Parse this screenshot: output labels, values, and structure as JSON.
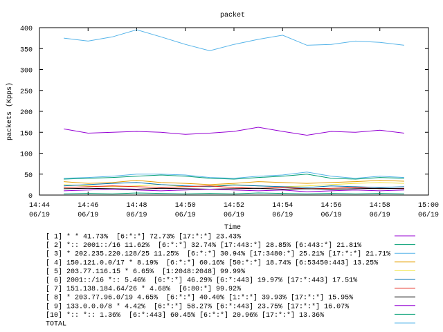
{
  "chart_data": {
    "type": "line",
    "title": "packet",
    "xlabel": "Time",
    "ylabel": "packets (Kpps)",
    "x": [
      "14:45",
      "14:46",
      "14:47",
      "14:48",
      "14:49",
      "14:50",
      "14:51",
      "14:52",
      "14:53",
      "14:54",
      "14:55",
      "14:56",
      "14:57",
      "14:58",
      "14:59"
    ],
    "xlim": [
      "14:44",
      "15:00"
    ],
    "xticks": [
      {
        "value": "14:44",
        "label": [
          "14:44",
          "06/19"
        ]
      },
      {
        "value": "14:46",
        "label": [
          "14:46",
          "06/19"
        ]
      },
      {
        "value": "14:48",
        "label": [
          "14:48",
          "06/19"
        ]
      },
      {
        "value": "14:50",
        "label": [
          "14:50",
          "06/19"
        ]
      },
      {
        "value": "14:52",
        "label": [
          "14:52",
          "06/19"
        ]
      },
      {
        "value": "14:54",
        "label": [
          "14:54",
          "06/19"
        ]
      },
      {
        "value": "14:56",
        "label": [
          "14:56",
          "06/19"
        ]
      },
      {
        "value": "14:58",
        "label": [
          "14:58",
          "06/19"
        ]
      },
      {
        "value": "15:00",
        "label": [
          "15:00",
          "06/19"
        ]
      }
    ],
    "ylim": [
      0,
      400
    ],
    "yticks": [
      0,
      50,
      100,
      150,
      200,
      250,
      300,
      350,
      400
    ],
    "series": [
      {
        "name": "[ 1] * * 41.73%  [6:*:*] 72.73% [17:*:*] 23.43%",
        "color": "#9400d3",
        "values": [
          158,
          148,
          150,
          152,
          150,
          145,
          148,
          152,
          162,
          152,
          143,
          152,
          150,
          155,
          148
        ]
      },
      {
        "name": "[ 2] *:: 2001::/16 11.62%  [6:*:*] 32.74% [17:443:*] 28.85% [6:443:*] 21.81%",
        "color": "#009e73",
        "values": [
          38,
          40,
          42,
          45,
          48,
          45,
          40,
          38,
          42,
          45,
          50,
          40,
          38,
          42,
          40
        ]
      },
      {
        "name": "[ 3] * 202.235.220.128/25 11.25%  [6:*:*] 30.94% [17:3480:*] 25.21% [17:*:*] 21.71%",
        "color": "#56b4e9",
        "values": [
          40,
          42,
          45,
          50,
          50,
          48,
          42,
          40,
          45,
          48,
          55,
          45,
          40,
          45,
          42
        ]
      },
      {
        "name": "[ 4] 150.121.0.0/17 * 8.19%  [6:*:*] 60.16% [50:*:*] 18.74% [6:53450:443] 13.25%",
        "color": "#e69f00",
        "values": [
          32,
          28,
          30,
          35,
          30,
          28,
          25,
          28,
          32,
          30,
          28,
          30,
          32,
          35,
          33
        ]
      },
      {
        "name": "[ 5] 203.77.116.15 * 6.65%  [1:2048:2048] 99.99%",
        "color": "#f0e442",
        "values": [
          25,
          22,
          20,
          22,
          25,
          20,
          22,
          25,
          22,
          20,
          22,
          25,
          28,
          30,
          28
        ]
      },
      {
        "name": "[ 6] 2001::/16 *:: 5.46%  [6:*:*] 46.29% [6:*:443] 19.97% [17:*:443] 17.51%",
        "color": "#0072b2",
        "values": [
          22,
          25,
          28,
          30,
          25,
          22,
          20,
          24,
          22,
          20,
          18,
          22,
          20,
          18,
          20
        ]
      },
      {
        "name": "[ 7] 151.138.184.64/26 * 4.68%  [6:80:*] 99.92%",
        "color": "#e51e10",
        "values": [
          18,
          20,
          22,
          20,
          18,
          20,
          22,
          18,
          16,
          18,
          15,
          16,
          18,
          15,
          16
        ]
      },
      {
        "name": "[ 8] * 203.77.96.0/19 4.65%  [6:*:*] 40.40% [1:*:*] 39.93% [17:*:*] 15.95%",
        "color": "#000000",
        "values": [
          15,
          16,
          15,
          14,
          16,
          15,
          14,
          15,
          16,
          14,
          15,
          14,
          15,
          16,
          15
        ]
      },
      {
        "name": "[ 9] 133.0.0.0/8 * 4.42%  [6:*:*] 58.27% [6:*:443] 23.75% [17:*:*] 16.07%",
        "color": "#9400d3",
        "values": [
          10,
          12,
          14,
          12,
          10,
          12,
          14,
          12,
          10,
          12,
          8,
          10,
          12,
          10,
          12
        ]
      },
      {
        "name": "[10] *:: *:: 1.36%  [6:*:443] 60.45% [6:*:*] 20.96% [17:*:*] 13.36%",
        "color": "#009e73",
        "values": [
          3,
          4,
          3,
          5,
          4,
          3,
          4,
          3,
          5,
          4,
          3,
          4,
          3,
          4,
          3
        ]
      },
      {
        "name": "TOTAL",
        "color": "#56b4e9",
        "values": [
          375,
          368,
          378,
          395,
          378,
          360,
          345,
          360,
          372,
          382,
          358,
          360,
          368,
          365,
          358
        ]
      }
    ]
  }
}
